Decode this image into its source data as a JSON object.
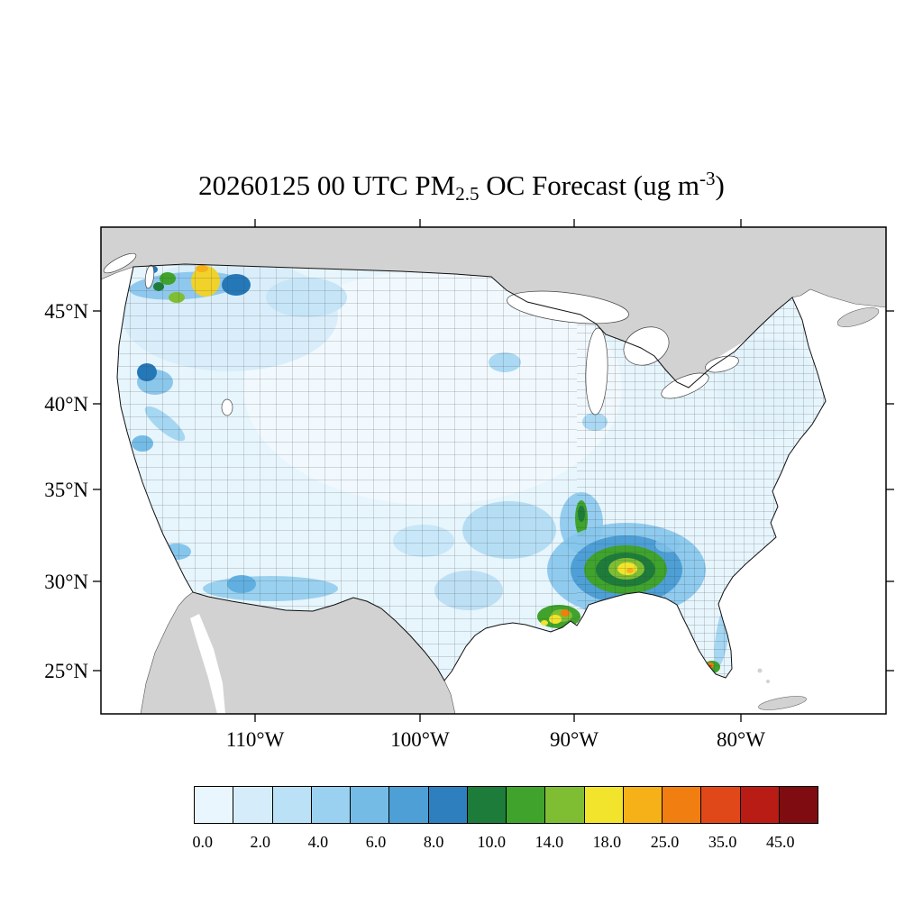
{
  "title": {
    "text_full": "20260125 00 UTC PM2.5 OC Forecast (ug m-3)",
    "prefix": "20260125 00 UTC PM",
    "subscript": "2.5",
    "middle": " OC Forecast (ug m",
    "superscript": "-3",
    "suffix": ")"
  },
  "axes": {
    "lat_labels": [
      "45°N",
      "40°N",
      "35°N",
      "30°N",
      "25°N"
    ],
    "lon_labels": [
      "110°W",
      "100°W",
      "90°W",
      "80°W"
    ]
  },
  "colorbar": {
    "labels": [
      "0.0",
      "2.0",
      "4.0",
      "6.0",
      "8.0",
      "10.0",
      "14.0",
      "18.0",
      "25.0",
      "35.0",
      "45.0"
    ],
    "colors": [
      "#E9F6FD",
      "#D5EDFA",
      "#BBE1F6",
      "#9AD1F0",
      "#74BCE6",
      "#4D9FD6",
      "#2E7FBE",
      "#1E7C3A",
      "#3FA32C",
      "#7FBE32",
      "#F2E32C",
      "#F6B119",
      "#F07E10",
      "#E0481A",
      "#B81C15",
      "#7E0C10"
    ]
  },
  "map": {
    "region": "Contiguous United States with county boundaries",
    "outside_land_color": "#D2D2D2",
    "ocean_color": "#FFFFFF",
    "base_county_fill": "#E7F5FD"
  },
  "chart_data": {
    "type": "heatmap",
    "title": "20260125 00 UTC PM2.5 OC Forecast (ug m-3)",
    "variable": "PM2.5 organic carbon (OC)",
    "units": "ug m-3",
    "valid_time": "20260125 00 UTC",
    "x_tick_labels": [
      "110°W",
      "100°W",
      "90°W",
      "80°W"
    ],
    "y_tick_labels": [
      "25°N",
      "30°N",
      "35°N",
      "40°N",
      "45°N"
    ],
    "color_levels": [
      0.0,
      2.0,
      4.0,
      6.0,
      8.0,
      10.0,
      14.0,
      18.0,
      25.0,
      35.0,
      45.0
    ],
    "legend_position": "bottom",
    "grid": "county boundaries over CONUS; non-US land flat gray",
    "regions": [
      {
        "name": "Most of contiguous US interior",
        "approx_value_ug_m3": "0-2"
      },
      {
        "name": "Western mountain states",
        "approx_value_ug_m3": "0-4"
      },
      {
        "name": "Puget Sound / NW Washington hotspot",
        "approx_value_ug_m3": "10-25"
      },
      {
        "name": "Northern Idaho panhandle",
        "approx_value_ug_m3": "6-10"
      },
      {
        "name": "Northern California coastal spot",
        "approx_value_ug_m3": "6-8"
      },
      {
        "name": "Sierra / Bay Area patches",
        "approx_value_ug_m3": "2-6"
      },
      {
        "name": "Southern Arizona - New Mexico border band",
        "approx_value_ug_m3": "2-6"
      },
      {
        "name": "Missouri / Arkansas",
        "approx_value_ug_m3": "2-4"
      },
      {
        "name": "Tennessee valley streak",
        "approx_value_ug_m3": "8-14"
      },
      {
        "name": "Southeast Alabama-Georgia hotspot",
        "approx_value_ug_m3": "10-18, peak 18-25"
      },
      {
        "name": "Coastal Louisiana cluster",
        "approx_value_ug_m3": "10-25"
      },
      {
        "name": "Mississippi-Alabama gulf coast",
        "approx_value_ug_m3": "8-14"
      },
      {
        "name": "Southwest Florida spot",
        "approx_value_ug_m3": "18-35"
      }
    ]
  }
}
